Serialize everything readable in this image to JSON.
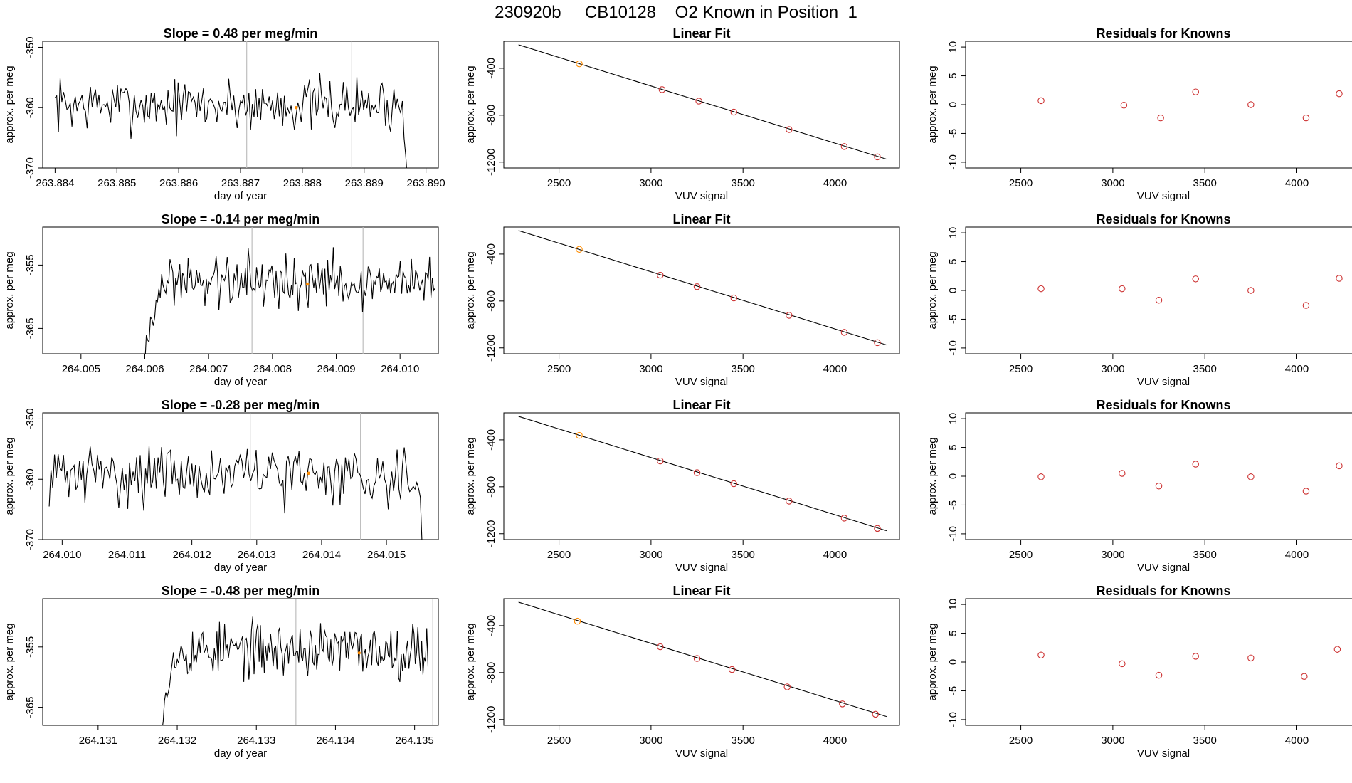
{
  "figure_title": "230920b     CB10128    O2 Known in Position  1",
  "colors": {
    "axis": "#000000",
    "series": "#000000",
    "known": "#ff8c00",
    "residual": "#cd3333",
    "vline": "#bebebe"
  },
  "chart_data": [
    {
      "type": "line",
      "panel": "timeseries-1",
      "title": "Slope =  0.48  per meg/min",
      "xlabel": "day of year",
      "ylabel": "approx. per meg",
      "xlim": [
        263.8838,
        263.8902
      ],
      "ylim": [
        -370,
        -349
      ],
      "x_ticks": [
        "263.884",
        "263.885",
        "263.886",
        "263.887",
        "263.888",
        "263.889",
        "263.890"
      ],
      "x_tick_values": [
        263.884,
        263.885,
        263.886,
        263.887,
        263.888,
        263.889,
        263.89
      ],
      "y_ticks": [
        "-370",
        "-360",
        "-350"
      ],
      "y_tick_values": [
        -370,
        -360,
        -350
      ],
      "x_start": 263.884,
      "x_end": 263.8897,
      "mean": -359.5,
      "amplitude": 2.6,
      "seed": 7,
      "ramp_start_value": -361,
      "ramp_points": 0,
      "tail_values": [
        -365,
        -368,
        -372
      ],
      "vlines": [
        263.8871,
        263.8888
      ],
      "marker": {
        "x": 263.8879,
        "y": -360
      }
    },
    {
      "type": "line",
      "panel": "timeseries-2",
      "title": "Slope =  -0.14  per meg/min",
      "xlabel": "day of year",
      "ylabel": "approx. per meg",
      "xlim": [
        264.0044,
        264.0106
      ],
      "ylim": [
        -369,
        -349
      ],
      "x_ticks": [
        "264.005",
        "264.006",
        "264.007",
        "264.008",
        "264.009",
        "264.010"
      ],
      "x_tick_values": [
        264.005,
        264.006,
        264.007,
        264.008,
        264.009,
        264.01
      ],
      "y_ticks": [
        "-365",
        "-355"
      ],
      "y_tick_values": [
        -365,
        -355
      ],
      "x_start": 264.00598,
      "x_end": 264.01055,
      "mean": -357.5,
      "amplitude": 2.4,
      "seed": 19,
      "ramp_start_value": -370,
      "ramp_points": 14,
      "tail_values": [],
      "vlines": [
        264.00768,
        264.00942
      ],
      "marker": {
        "x": 264.00855,
        "y": -358
      }
    },
    {
      "type": "line",
      "panel": "timeseries-3",
      "title": "Slope =  -0.28  per meg/min",
      "xlabel": "day of year",
      "ylabel": "approx. per meg",
      "xlim": [
        264.0097,
        264.0158
      ],
      "ylim": [
        -370,
        -349
      ],
      "x_ticks": [
        "264.010",
        "264.011",
        "264.012",
        "264.013",
        "264.014",
        "264.015"
      ],
      "x_tick_values": [
        264.01,
        264.011,
        264.012,
        264.013,
        264.014,
        264.015
      ],
      "y_ticks": [
        "-370",
        "-360",
        "-350"
      ],
      "y_tick_values": [
        -370,
        -360,
        -350
      ],
      "x_start": 264.0098,
      "x_end": 264.01555,
      "mean": -359.2,
      "amplitude": 2.8,
      "seed": 31,
      "ramp_start_value": -359,
      "ramp_points": 0,
      "tail_values": [
        -363,
        -371
      ],
      "vlines": [
        264.0129,
        264.0146
      ],
      "marker": {
        "x": 264.0138,
        "y": -359
      }
    },
    {
      "type": "line",
      "panel": "timeseries-4",
      "title": "Slope =  -0.48  per meg/min",
      "xlabel": "day of year",
      "ylabel": "approx. per meg",
      "xlim": [
        264.1303,
        264.1353
      ],
      "ylim": [
        -368,
        -347
      ],
      "x_ticks": [
        "264.131",
        "264.132",
        "264.133",
        "264.134",
        "264.135"
      ],
      "x_tick_values": [
        264.131,
        264.132,
        264.133,
        264.134,
        264.135
      ],
      "y_ticks": [
        "-365",
        "-355"
      ],
      "y_tick_values": [
        -365,
        -355
      ],
      "x_start": 264.13179,
      "x_end": 264.13517,
      "mean": -355.5,
      "amplitude": 2.6,
      "seed": 53,
      "ramp_start_value": -369,
      "ramp_points": 12,
      "tail_values": [],
      "vlines": [
        264.1335,
        264.13523
      ],
      "marker": {
        "x": 264.1343,
        "y": -356
      }
    },
    {
      "type": "scatter",
      "panel": "linear-fit-1",
      "title": "Linear Fit",
      "xlabel": "VUV signal",
      "ylabel": "approx. per meg",
      "xlim": [
        2200,
        4350
      ],
      "ylim": [
        -1250,
        -170
      ],
      "x_ticks": [
        "2500",
        "3000",
        "3500",
        "4000"
      ],
      "x_tick_values": [
        2500,
        3000,
        3500,
        4000
      ],
      "y_ticks": [
        "-1200",
        "-800",
        "-400"
      ],
      "y_tick_values": [
        -1200,
        -800,
        -400
      ],
      "line": {
        "x": [
          2280,
          4280
        ],
        "y": [
          -200,
          -1175
        ]
      },
      "points": {
        "x": [
          2610,
          3060,
          3260,
          3450,
          3750,
          4050,
          4230
        ],
        "y": [
          -362,
          -582,
          -680,
          -774,
          -922,
          -1067,
          -1155
        ]
      },
      "known_index": 0
    },
    {
      "type": "scatter",
      "panel": "linear-fit-2",
      "title": "Linear Fit",
      "xlabel": "VUV signal",
      "ylabel": "approx. per meg",
      "xlim": [
        2200,
        4350
      ],
      "ylim": [
        -1250,
        -170
      ],
      "x_ticks": [
        "2500",
        "3000",
        "3500",
        "4000"
      ],
      "x_tick_values": [
        2500,
        3000,
        3500,
        4000
      ],
      "y_ticks": [
        "-1200",
        "-800",
        "-400"
      ],
      "y_tick_values": [
        -1200,
        -800,
        -400
      ],
      "line": {
        "x": [
          2280,
          4280
        ],
        "y": [
          -200,
          -1175
        ]
      },
      "points": {
        "x": [
          2610,
          3050,
          3250,
          3450,
          3750,
          4050,
          4230
        ],
        "y": [
          -360,
          -580,
          -678,
          -774,
          -922,
          -1067,
          -1155
        ]
      },
      "known_index": 0
    },
    {
      "type": "scatter",
      "panel": "linear-fit-3",
      "title": "Linear Fit",
      "xlabel": "VUV signal",
      "ylabel": "approx. per meg",
      "xlim": [
        2200,
        4350
      ],
      "ylim": [
        -1250,
        -170
      ],
      "x_ticks": [
        "2500",
        "3000",
        "3500",
        "4000"
      ],
      "x_tick_values": [
        2500,
        3000,
        3500,
        4000
      ],
      "y_ticks": [
        "-1200",
        "-800",
        "-400"
      ],
      "y_tick_values": [
        -1200,
        -800,
        -400
      ],
      "line": {
        "x": [
          2280,
          4280
        ],
        "y": [
          -200,
          -1175
        ]
      },
      "points": {
        "x": [
          2610,
          3050,
          3250,
          3450,
          3750,
          4050,
          4230
        ],
        "y": [
          -362,
          -580,
          -680,
          -774,
          -922,
          -1067,
          -1155
        ]
      },
      "known_index": 0
    },
    {
      "type": "scatter",
      "panel": "linear-fit-4",
      "title": "Linear Fit",
      "xlabel": "VUV signal",
      "ylabel": "approx. per meg",
      "xlim": [
        2200,
        4350
      ],
      "ylim": [
        -1250,
        -170
      ],
      "x_ticks": [
        "2500",
        "3000",
        "3500",
        "4000"
      ],
      "x_tick_values": [
        2500,
        3000,
        3500,
        4000
      ],
      "y_ticks": [
        "-1200",
        "-800",
        "-400"
      ],
      "y_tick_values": [
        -1200,
        -800,
        -400
      ],
      "line": {
        "x": [
          2280,
          4280
        ],
        "y": [
          -200,
          -1175
        ]
      },
      "points": {
        "x": [
          2600,
          3050,
          3250,
          3440,
          3740,
          4040,
          4220
        ],
        "y": [
          -362,
          -580,
          -680,
          -774,
          -922,
          -1067,
          -1155
        ]
      },
      "known_index": 0
    },
    {
      "type": "scatter",
      "panel": "residuals-1",
      "title": "Residuals for Knowns",
      "xlabel": "VUV signal",
      "ylabel": "approx. per meg",
      "xlim": [
        2200,
        4350
      ],
      "ylim": [
        -11,
        11
      ],
      "x_ticks": [
        "2500",
        "3000",
        "3500",
        "4000"
      ],
      "x_tick_values": [
        2500,
        3000,
        3500,
        4000
      ],
      "y_ticks": [
        "-10",
        "-5",
        "0",
        "5",
        "10"
      ],
      "y_tick_values": [
        -10,
        -5,
        0,
        5,
        10
      ],
      "points": {
        "x": [
          2610,
          3060,
          3260,
          3450,
          3750,
          4050,
          4230
        ],
        "y": [
          0.7,
          -0.1,
          -2.3,
          2.2,
          0.0,
          -2.3,
          1.9
        ]
      }
    },
    {
      "type": "scatter",
      "panel": "residuals-2",
      "title": "Residuals for Knowns",
      "xlabel": "VUV signal",
      "ylabel": "approx. per meg",
      "xlim": [
        2200,
        4350
      ],
      "ylim": [
        -11,
        11
      ],
      "x_ticks": [
        "2500",
        "3000",
        "3500",
        "4000"
      ],
      "x_tick_values": [
        2500,
        3000,
        3500,
        4000
      ],
      "y_ticks": [
        "-10",
        "-5",
        "0",
        "5",
        "10"
      ],
      "y_tick_values": [
        -10,
        -5,
        0,
        5,
        10
      ],
      "points": {
        "x": [
          2610,
          3050,
          3250,
          3450,
          3750,
          4050,
          4230
        ],
        "y": [
          0.3,
          0.3,
          -1.7,
          2.0,
          0.0,
          -2.6,
          2.1
        ]
      }
    },
    {
      "type": "scatter",
      "panel": "residuals-3",
      "title": "Residuals for Knowns",
      "xlabel": "VUV signal",
      "ylabel": "approx. per meg",
      "xlim": [
        2200,
        4350
      ],
      "ylim": [
        -11,
        11
      ],
      "x_ticks": [
        "2500",
        "3000",
        "3500",
        "4000"
      ],
      "x_tick_values": [
        2500,
        3000,
        3500,
        4000
      ],
      "y_ticks": [
        "-10",
        "-5",
        "0",
        "5",
        "10"
      ],
      "y_tick_values": [
        -10,
        -5,
        0,
        5,
        10
      ],
      "points": {
        "x": [
          2610,
          3050,
          3250,
          3450,
          3750,
          4050,
          4230
        ],
        "y": [
          -0.1,
          0.5,
          -1.7,
          2.1,
          -0.1,
          -2.6,
          1.8
        ]
      }
    },
    {
      "type": "scatter",
      "panel": "residuals-4",
      "title": "Residuals for Knowns",
      "xlabel": "VUV signal",
      "ylabel": "approx. per meg",
      "xlim": [
        2200,
        4350
      ],
      "ylim": [
        -11,
        11
      ],
      "x_ticks": [
        "2500",
        "3000",
        "3500",
        "4000"
      ],
      "x_tick_values": [
        2500,
        3000,
        3500,
        4000
      ],
      "y_ticks": [
        "-10",
        "-5",
        "0",
        "5",
        "10"
      ],
      "y_tick_values": [
        -10,
        -5,
        0,
        5,
        10
      ],
      "points": {
        "x": [
          2610,
          3050,
          3250,
          3450,
          3750,
          4040,
          4220
        ],
        "y": [
          1.2,
          -0.3,
          -2.3,
          1.0,
          0.7,
          -2.5,
          2.2
        ]
      }
    }
  ]
}
